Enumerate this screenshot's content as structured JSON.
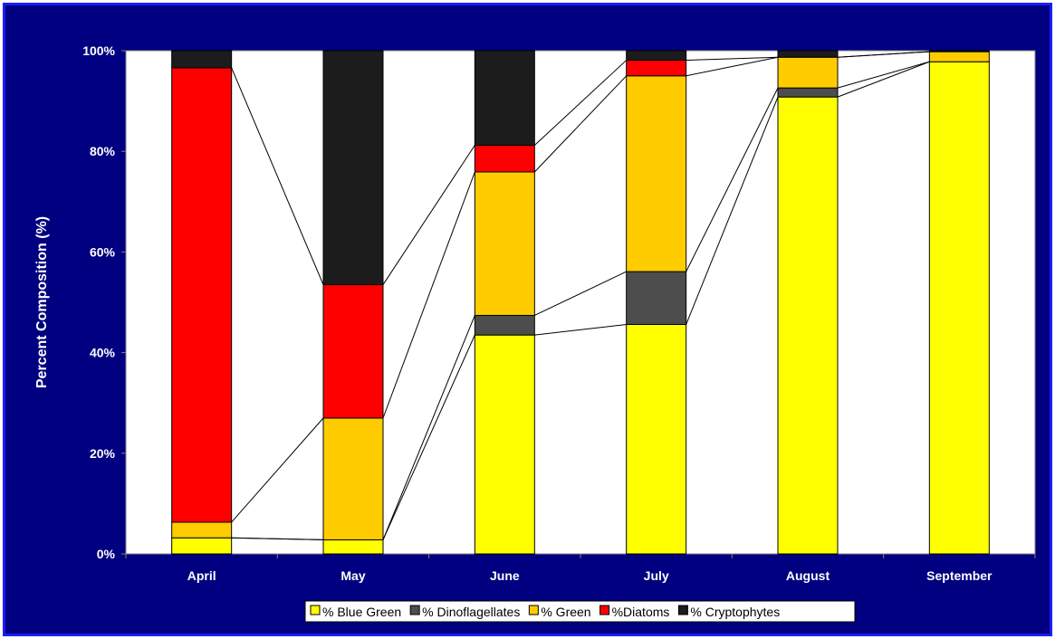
{
  "chart_data": {
    "type": "bar",
    "stacked": true,
    "series_lines": true,
    "categories": [
      "April",
      "May",
      "June",
      "July",
      "August",
      "September"
    ],
    "ylabel": "Percent Composition (%)",
    "ylim": [
      0,
      100
    ],
    "yticks": [
      "0%",
      "20%",
      "40%",
      "60%",
      "80%",
      "100%"
    ],
    "legend_position": "bottom",
    "series": [
      {
        "name": "% Blue Green",
        "color": "#ffff00",
        "values": [
          3.2,
          2.8,
          43.5,
          45.6,
          90.8,
          97.8
        ]
      },
      {
        "name": "% Dinoflagellates",
        "color": "#4d4d4d",
        "values": [
          0.0,
          0.0,
          3.9,
          10.5,
          1.8,
          0.0
        ]
      },
      {
        "name": "% Green",
        "color": "#ffcc00",
        "values": [
          3.1,
          24.2,
          28.5,
          38.9,
          6.1,
          2.0
        ]
      },
      {
        "name": "%Diatoms",
        "color": "#ff0000",
        "values": [
          90.3,
          26.5,
          5.3,
          3.1,
          0.0,
          0.0
        ]
      },
      {
        "name": "% Cryptophytes",
        "color": "#1c1c1c",
        "values": [
          3.4,
          46.5,
          18.8,
          1.9,
          1.3,
          0.2
        ]
      }
    ]
  }
}
